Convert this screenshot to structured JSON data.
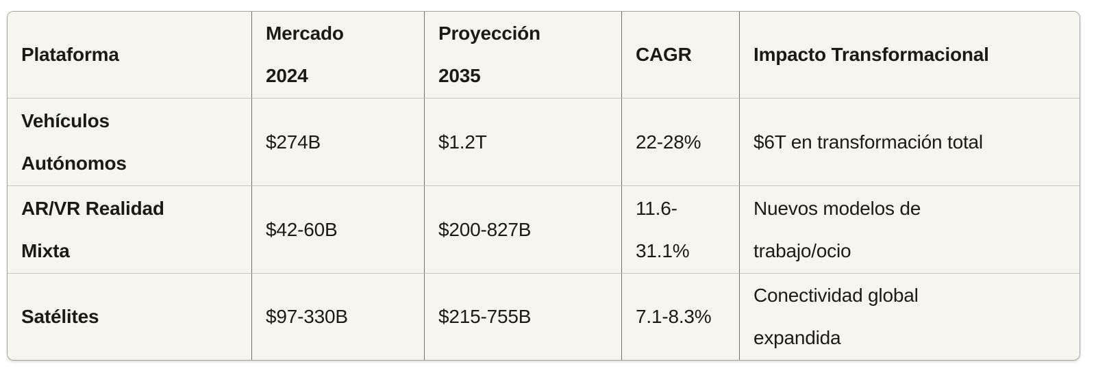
{
  "colors": {
    "page_bg": "#ffffff",
    "cell_bg": "#f6f5ef",
    "text": "#1b1a17",
    "outer_border": "#a5a49c",
    "vertical_border": "#72716a",
    "horizontal_border": "#c9c7bf"
  },
  "chart_data": {
    "type": "table",
    "columns": [
      "Plataforma",
      "Mercado\n2024",
      "Proyección\n2035",
      "CAGR",
      "Impacto Transformacional"
    ],
    "rows": [
      [
        "Vehículos\nAutónomos",
        "$274B",
        "$1.2T",
        "22-28%",
        "$6T en transformación total"
      ],
      [
        "AR/VR Realidad\nMixta",
        "$42-60B",
        "$200-827B",
        "11.6-\n31.1%",
        "Nuevos modelos de\ntrabajo/ocio"
      ],
      [
        "Satélites",
        "$97-330B",
        "$215-755B",
        "7.1-8.3%",
        "Conectividad global\nexpandida"
      ]
    ]
  }
}
